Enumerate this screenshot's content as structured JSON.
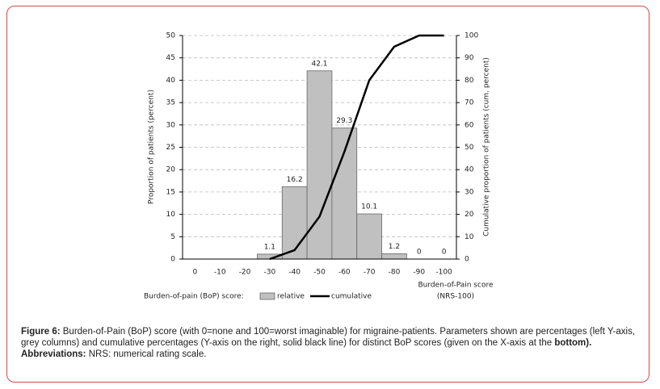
{
  "chart_data": {
    "type": "bar_line",
    "y_label": "Proportion of patients (percent)",
    "y2_label": "Cumulative proportion of patients (cum. percent)",
    "x_label": [
      "Burden-of-Pain score",
      "(NRS-100)"
    ],
    "legend_title": "Burden-of-pain (BoP) score:",
    "categories": [
      "0",
      "-10",
      "-20",
      "-30",
      "-40",
      "-50",
      "-60",
      "-70",
      "-80",
      "-90",
      "-100"
    ],
    "series": [
      {
        "name": "relative",
        "type": "bar",
        "color": "#c0c0c0",
        "values": [
          null,
          null,
          null,
          1.1,
          16.2,
          42.1,
          29.3,
          10.1,
          1.2,
          0,
          0
        ]
      },
      {
        "name": "cumulative",
        "type": "line",
        "axis": "y2",
        "color": "#000000",
        "values": [
          null,
          null,
          null,
          0,
          4,
          19,
          48,
          80,
          95,
          100,
          100
        ]
      }
    ],
    "ylim": [
      0,
      50
    ],
    "yticks": [
      0,
      5,
      10,
      15,
      20,
      25,
      30,
      35,
      40,
      45,
      50
    ],
    "y2lim": [
      0,
      100
    ],
    "y2ticks": [
      0,
      10,
      20,
      30,
      40,
      50,
      60,
      70,
      80,
      90,
      100
    ],
    "grid": true
  },
  "caption": {
    "label": "Figure 6:",
    "text": "Burden-of-Pain (BoP) score (with 0=none and 100=worst imaginable) for migraine-patients. Parameters shown are percentages (left Y-axis, grey columns) and cumulative percentages (Y-axis on the right, solid black line) for distinct BoP scores (given on the X-axis at the",
    "bold_tail": "bottom).",
    "abbr_label": "Abbreviations:",
    "abbr_text": "NRS: numerical rating scale."
  }
}
